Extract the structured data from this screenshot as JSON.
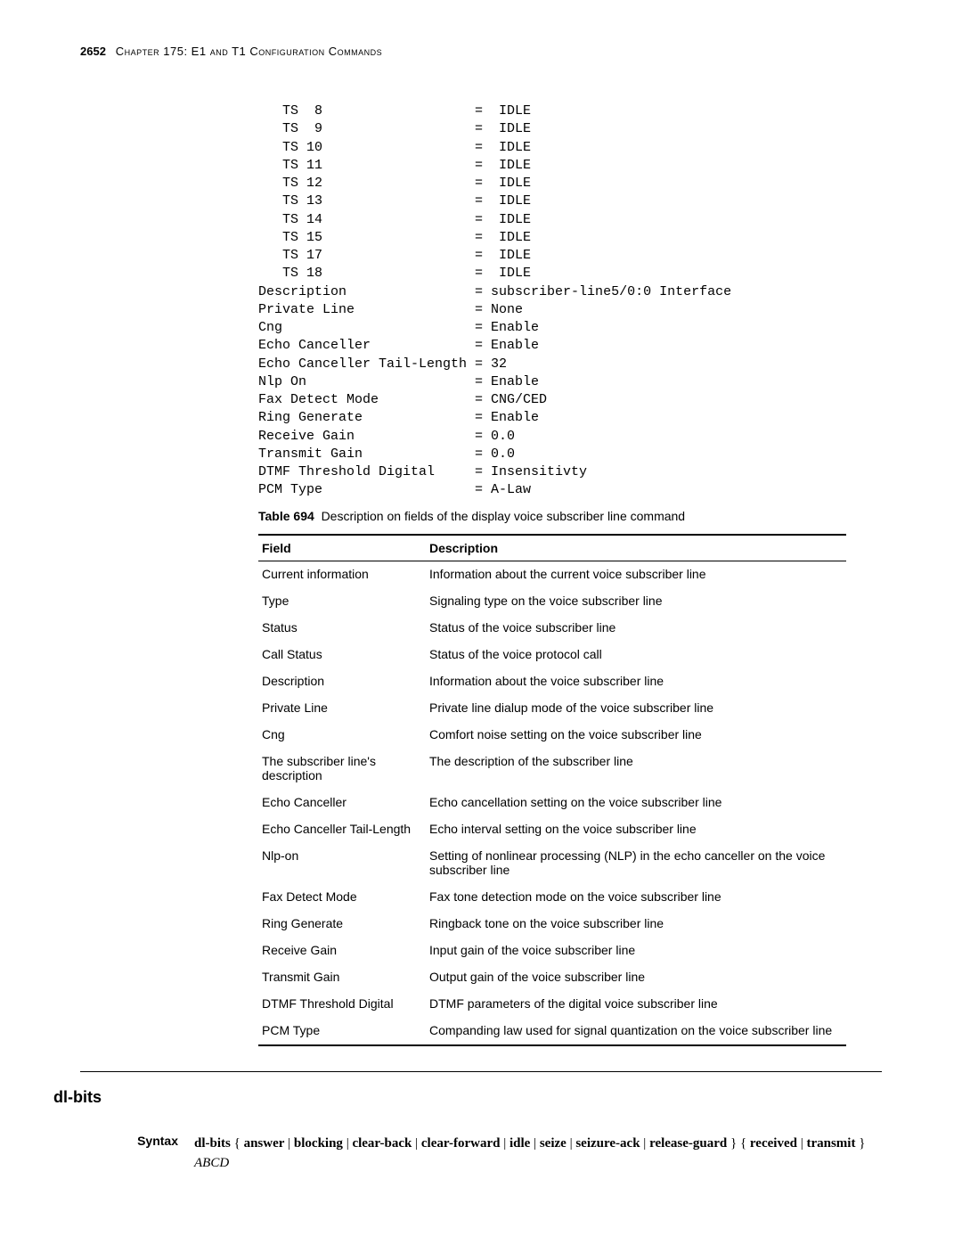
{
  "header": {
    "pagenum": "2652",
    "chapter": "Chapter 175: E1 and T1 Configuration Commands"
  },
  "code": {
    "lines": [
      "   TS  8                   =  IDLE",
      "   TS  9                   =  IDLE",
      "   TS 10                   =  IDLE",
      "   TS 11                   =  IDLE",
      "   TS 12                   =  IDLE",
      "   TS 13                   =  IDLE",
      "   TS 14                   =  IDLE",
      "   TS 15                   =  IDLE",
      "   TS 17                   =  IDLE",
      "   TS 18                   =  IDLE",
      "Description                = subscriber-line5/0:0 Interface",
      "Private Line               = None",
      "Cng                        = Enable",
      "Echo Canceller             = Enable",
      "Echo Canceller Tail-Length = 32",
      "Nlp On                     = Enable",
      "Fax Detect Mode            = CNG/CED",
      "Ring Generate              = Enable",
      "Receive Gain               = 0.0",
      "Transmit Gain              = 0.0",
      "DTMF Threshold Digital     = Insensitivty",
      "PCM Type                   = A-Law"
    ]
  },
  "table": {
    "caption_num": "Table 694",
    "caption_text": "Description on fields of the display voice subscriber line command",
    "head_field": "Field",
    "head_desc": "Description",
    "rows": [
      {
        "f": "Current information",
        "d": "Information about the current voice subscriber line"
      },
      {
        "f": "Type",
        "d": "Signaling type on the voice subscriber line"
      },
      {
        "f": "Status",
        "d": "Status of the voice subscriber line"
      },
      {
        "f": "Call Status",
        "d": "Status of the voice protocol call"
      },
      {
        "f": "Description",
        "d": "Information about the voice subscriber line"
      },
      {
        "f": "Private Line",
        "d": "Private line dialup mode of the voice subscriber line"
      },
      {
        "f": "Cng",
        "d": "Comfort noise setting on the voice subscriber line"
      },
      {
        "f": "The subscriber line's description",
        "d": "The description of the subscriber line"
      },
      {
        "f": "Echo Canceller",
        "d": "Echo cancellation setting on the voice subscriber line"
      },
      {
        "f": "Echo Canceller Tail-Length",
        "d": "Echo interval setting on the voice subscriber line"
      },
      {
        "f": "Nlp-on",
        "d": "Setting of nonlinear processing (NLP) in the echo canceller on the voice subscriber line"
      },
      {
        "f": "Fax Detect Mode",
        "d": "Fax tone detection mode on the voice subscriber line"
      },
      {
        "f": "Ring Generate",
        "d": "Ringback tone on the voice subscriber line"
      },
      {
        "f": "Receive Gain",
        "d": "Input gain of the voice subscriber line"
      },
      {
        "f": "Transmit Gain",
        "d": "Output gain of the voice subscriber line"
      },
      {
        "f": "DTMF Threshold Digital",
        "d": "DTMF parameters of the digital voice subscriber line"
      },
      {
        "f": "PCM Type",
        "d": "Companding law used for signal quantization on the voice subscriber line"
      }
    ]
  },
  "section": {
    "heading": "dl-bits",
    "syntax_label": "Syntax",
    "syntax_parts": {
      "cmd": "dl-bits",
      "opts1": [
        "answer",
        "blocking",
        "clear-back",
        "clear-forward",
        "idle",
        "seize",
        "seizure-ack",
        "release-guard"
      ],
      "opts2": [
        "received",
        "transmit"
      ],
      "arg": "ABCD"
    }
  }
}
